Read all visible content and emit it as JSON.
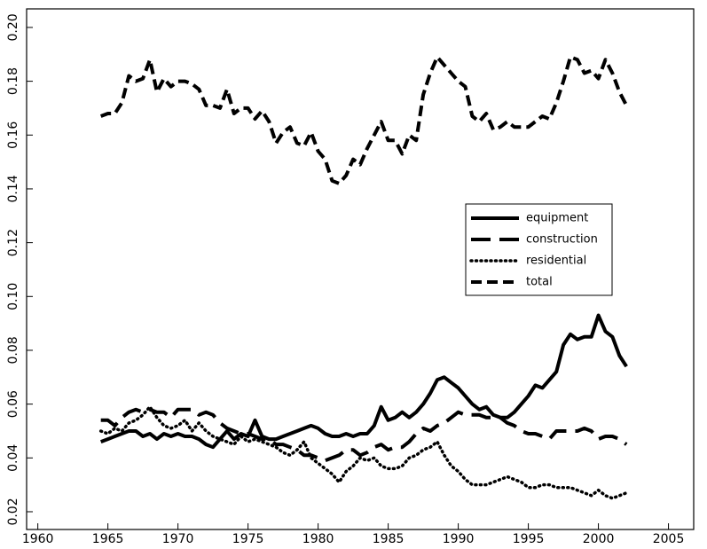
{
  "chart_data": {
    "type": "line",
    "x": [
      1964.5,
      1965,
      1965.5,
      1966,
      1966.5,
      1967,
      1967.5,
      1968,
      1968.5,
      1969,
      1969.5,
      1970,
      1970.5,
      1971,
      1971.5,
      1972,
      1972.5,
      1973,
      1973.5,
      1974,
      1974.5,
      1975,
      1975.5,
      1976,
      1976.5,
      1977,
      1977.5,
      1978,
      1978.5,
      1979,
      1979.5,
      1980,
      1980.5,
      1981,
      1981.5,
      1982,
      1982.5,
      1983,
      1983.5,
      1984,
      1984.5,
      1985,
      1985.5,
      1986,
      1986.5,
      1987,
      1987.5,
      1988,
      1988.5,
      1989,
      1989.5,
      1990,
      1990.5,
      1991,
      1991.5,
      1992,
      1992.5,
      1993,
      1993.5,
      1994,
      1994.5,
      1995,
      1995.5,
      1996,
      1996.5,
      1997,
      1997.5,
      1998,
      1998.5,
      1999,
      1999.5,
      2000,
      2000.5,
      2001,
      2001.5,
      2002
    ],
    "series": [
      {
        "name": "equipment",
        "color": "#000000",
        "linestyle": "solid",
        "values": [
          0.046,
          0.047,
          0.048,
          0.049,
          0.05,
          0.05,
          0.048,
          0.049,
          0.047,
          0.049,
          0.048,
          0.049,
          0.048,
          0.048,
          0.047,
          0.045,
          0.044,
          0.047,
          0.05,
          0.047,
          0.049,
          0.048,
          0.054,
          0.048,
          0.047,
          0.047,
          0.048,
          0.049,
          0.05,
          0.051,
          0.052,
          0.051,
          0.049,
          0.048,
          0.048,
          0.049,
          0.048,
          0.049,
          0.049,
          0.052,
          0.059,
          0.054,
          0.055,
          0.057,
          0.055,
          0.057,
          0.06,
          0.064,
          0.069,
          0.07,
          0.068,
          0.066,
          0.063,
          0.06,
          0.058,
          0.059,
          0.056,
          0.055,
          0.055,
          0.057,
          0.06,
          0.063,
          0.067,
          0.066,
          0.069,
          0.072,
          0.082,
          0.086,
          0.084,
          0.085,
          0.085,
          0.093,
          0.087,
          0.085,
          0.078,
          0.074
        ]
      },
      {
        "name": "construction",
        "color": "#000000",
        "linestyle": "long-dash",
        "values": [
          0.054,
          0.054,
          0.052,
          0.055,
          0.057,
          0.058,
          0.057,
          0.058,
          0.057,
          0.057,
          0.055,
          0.058,
          0.058,
          0.058,
          0.056,
          0.057,
          0.056,
          0.053,
          0.051,
          0.05,
          0.049,
          0.049,
          0.048,
          0.047,
          0.047,
          0.045,
          0.045,
          0.044,
          0.043,
          0.041,
          0.041,
          0.04,
          0.039,
          0.04,
          0.041,
          0.043,
          0.043,
          0.041,
          0.042,
          0.044,
          0.045,
          0.043,
          0.044,
          0.044,
          0.046,
          0.049,
          0.051,
          0.05,
          0.052,
          0.053,
          0.055,
          0.057,
          0.056,
          0.056,
          0.056,
          0.055,
          0.055,
          0.055,
          0.053,
          0.052,
          0.05,
          0.049,
          0.049,
          0.048,
          0.047,
          0.05,
          0.05,
          0.05,
          0.05,
          0.051,
          0.05,
          0.047,
          0.048,
          0.048,
          0.047,
          0.045
        ]
      },
      {
        "name": "residential",
        "color": "#000000",
        "linestyle": "dotted",
        "values": [
          0.05,
          0.049,
          0.051,
          0.05,
          0.053,
          0.054,
          0.056,
          0.059,
          0.055,
          0.052,
          0.051,
          0.052,
          0.054,
          0.05,
          0.053,
          0.05,
          0.048,
          0.047,
          0.046,
          0.045,
          0.048,
          0.046,
          0.047,
          0.046,
          0.045,
          0.044,
          0.042,
          0.041,
          0.043,
          0.046,
          0.04,
          0.038,
          0.036,
          0.034,
          0.031,
          0.035,
          0.037,
          0.04,
          0.039,
          0.04,
          0.037,
          0.036,
          0.036,
          0.037,
          0.04,
          0.041,
          0.043,
          0.044,
          0.046,
          0.041,
          0.037,
          0.035,
          0.032,
          0.03,
          0.03,
          0.03,
          0.031,
          0.032,
          0.033,
          0.032,
          0.031,
          0.029,
          0.029,
          0.03,
          0.03,
          0.029,
          0.029,
          0.029,
          0.028,
          0.027,
          0.026,
          0.028,
          0.026,
          0.025,
          0.026,
          0.027
        ]
      },
      {
        "name": "total",
        "color": "#000000",
        "linestyle": "dashed",
        "values": [
          0.167,
          0.168,
          0.168,
          0.172,
          0.182,
          0.18,
          0.181,
          0.188,
          0.176,
          0.181,
          0.178,
          0.18,
          0.18,
          0.179,
          0.177,
          0.171,
          0.171,
          0.17,
          0.177,
          0.168,
          0.17,
          0.17,
          0.166,
          0.169,
          0.165,
          0.157,
          0.161,
          0.163,
          0.157,
          0.156,
          0.161,
          0.154,
          0.151,
          0.143,
          0.142,
          0.145,
          0.151,
          0.149,
          0.155,
          0.16,
          0.165,
          0.158,
          0.158,
          0.153,
          0.16,
          0.158,
          0.175,
          0.183,
          0.189,
          0.186,
          0.183,
          0.18,
          0.178,
          0.167,
          0.165,
          0.168,
          0.162,
          0.163,
          0.165,
          0.163,
          0.163,
          0.163,
          0.165,
          0.167,
          0.166,
          0.172,
          0.18,
          0.189,
          0.188,
          0.183,
          0.184,
          0.181,
          0.188,
          0.183,
          0.176,
          0.171
        ]
      }
    ],
    "xlim": [
      1959.2,
      2006.8
    ],
    "xticks": [
      1960,
      1965,
      1970,
      1975,
      1980,
      1985,
      1990,
      1995,
      2000,
      2005
    ],
    "ylim": [
      0.0134,
      0.2069
    ],
    "yticks": [
      0.02,
      0.04,
      0.06,
      0.08,
      {
        "value": 0.1,
        "label": "0.10"
      },
      0.12,
      0.14,
      0.16,
      0.18,
      {
        "value": 0.2,
        "label": "0.20"
      }
    ],
    "legend": "center-right"
  }
}
